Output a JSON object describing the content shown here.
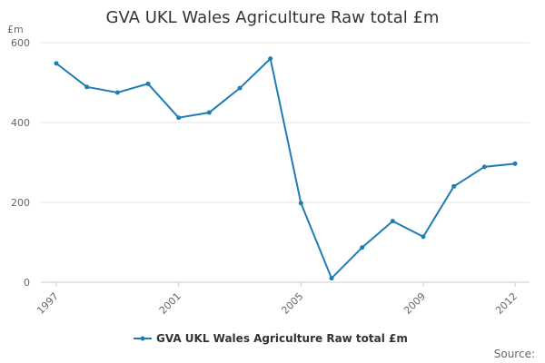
{
  "chart_data": {
    "type": "line",
    "title": "GVA UKL Wales Agriculture Raw total £m",
    "xlabel": "",
    "ylabel": "£m",
    "x": [
      1997,
      1998,
      1999,
      2000,
      2001,
      2002,
      2003,
      2004,
      2005,
      2006,
      2007,
      2008,
      2009,
      2010,
      2011,
      2012
    ],
    "xlim": [
      1997,
      2012
    ],
    "ylim": [
      0,
      600
    ],
    "x_tick_labels": [
      "1997",
      "2001",
      "2005",
      "2009",
      "2012"
    ],
    "y_tick_labels": [
      "0",
      "200",
      "400",
      "600"
    ],
    "grid": "horizontal",
    "legend_position": "bottom",
    "series": [
      {
        "name": "GVA UKL Wales Agriculture Raw total £m",
        "color": "#1f7db5",
        "values": [
          548,
          489,
          475,
          497,
          412,
          425,
          486,
          560,
          198,
          10,
          87,
          153,
          114,
          240,
          289,
          297
        ]
      }
    ]
  },
  "credits": {
    "source_label": "Source:"
  }
}
